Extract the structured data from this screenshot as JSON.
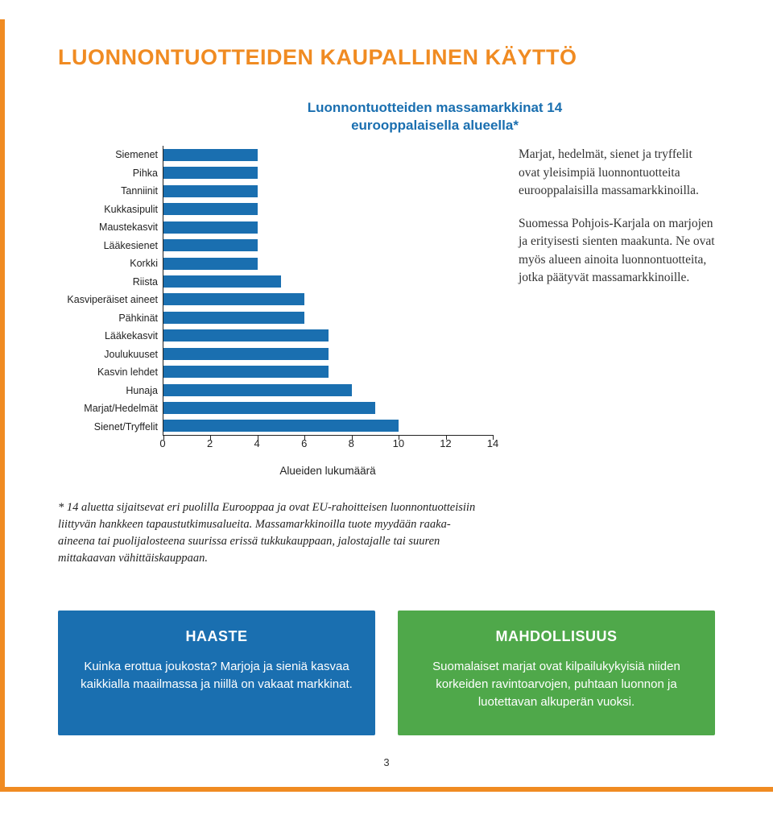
{
  "title": "LUONNONTUOTTEIDEN KAUPALLINEN KÄYTTÖ",
  "chart": {
    "type": "bar-horizontal",
    "subtitle": "Luonnontuotteiden massamarkkinat 14\neurooppalaisella alueella*",
    "categories": [
      "Siemenet",
      "Pihka",
      "Tanniinit",
      "Kukkasipulit",
      "Maustekasvit",
      "Lääkesienet",
      "Korkki",
      "Riista",
      "Kasviperäiset aineet",
      "Pähkinät",
      "Lääkekasvit",
      "Joulukuuset",
      "Kasvin lehdet",
      "Hunaja",
      "Marjat/Hedelmät",
      "Sienet/Tryffelit"
    ],
    "values": [
      4,
      4,
      4,
      4,
      4,
      4,
      4,
      5,
      6,
      6,
      7,
      7,
      7,
      8,
      9,
      10
    ],
    "bar_color": "#1a6fb0",
    "xlim": [
      0,
      14
    ],
    "xtick_step": 2,
    "xticks": [
      0,
      2,
      4,
      6,
      8,
      10,
      12,
      14
    ],
    "xlabel": "Alueiden lukumäärä",
    "y_fontsize": 12.5,
    "x_fontsize": 13,
    "axis_color": "#222222",
    "background": "#ffffff"
  },
  "side": {
    "p1": "Marjat, hedelmät, sienet ja tryffelit ovat yleisimpiä luonnontuotteita eurooppalaisilla massamarkkinoilla.",
    "p2": "Suomessa Pohjois-Karjala on marjojen ja erityisesti sienten maakunta. Ne ovat myös alueen ainoita luonnontuotteita, jotka päätyvät massamarkkinoille."
  },
  "footnote": "* 14 aluetta sijaitsevat eri puolilla Eurooppaa ja ovat EU-rahoitteisen luonnontuotteisiin liittyvän hankkeen tapaustutkimusalueita. Massamarkkinoilla tuote myydään raaka-aineena tai puolijalosteena suurissa erissä tukkukauppaan, jalostajalle tai suuren mittakaavan vähittäiskauppaan.",
  "boxes": {
    "haaste": {
      "heading": "HAASTE",
      "body": "Kuinka erottua joukosta? Marjoja ja sieniä kasvaa kaikkialla maailmassa ja niillä on vakaat markkinat.",
      "bg": "#1a6fb0"
    },
    "mahd": {
      "heading": "MAHDOLLISUUS",
      "body": "Suomalaiset marjat ovat kilpailukykyisiä niiden korkeiden ravintoarvojen, puhtaan luonnon ja luotettavan alkuperän vuoksi.",
      "bg": "#4fa84a"
    }
  },
  "page_number": "3",
  "accent_color": "#f08b22"
}
